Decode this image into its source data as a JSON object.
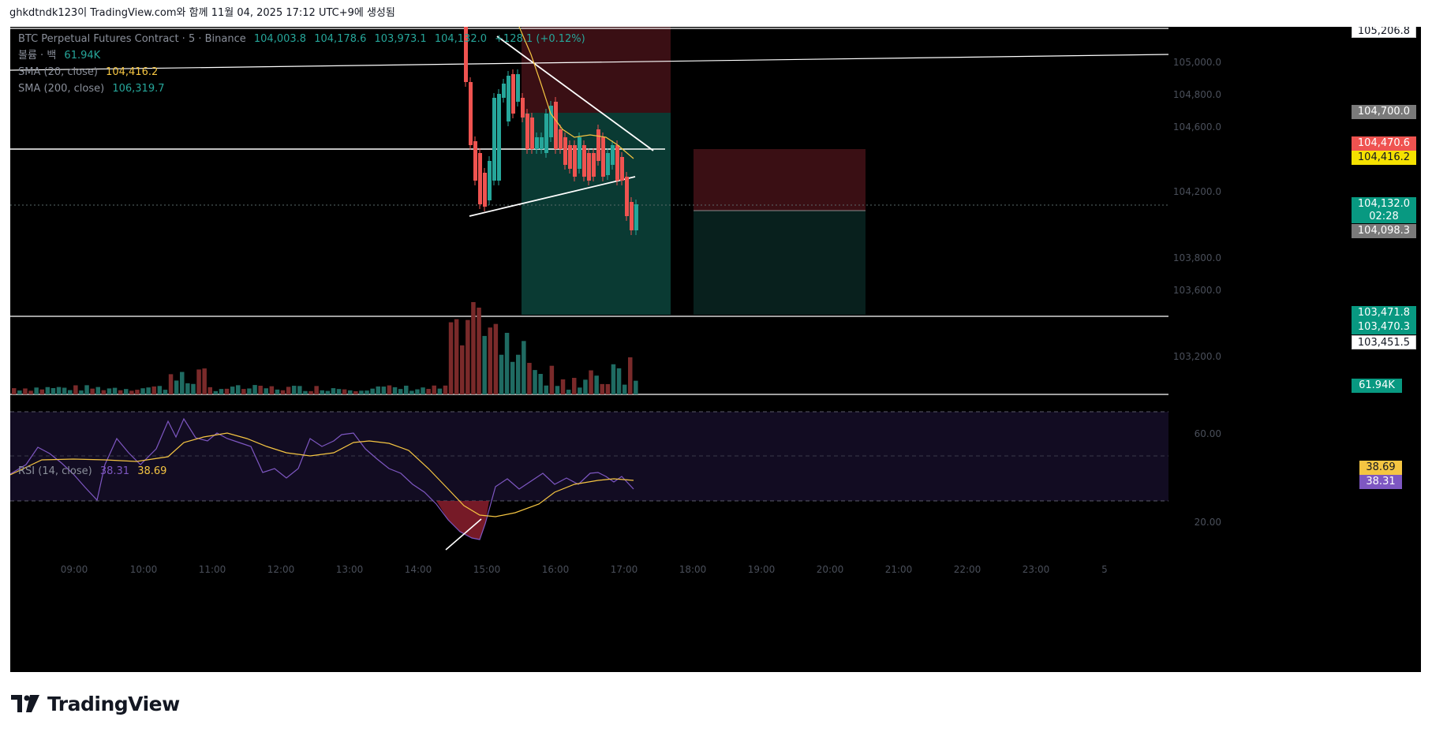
{
  "header": {
    "caption": "ghkdtndk123이 TradingView.com와 함께 11월 04, 2025 17:12 UTC+9에 생성됨"
  },
  "legend": {
    "symbol": "BTC Perpetual Futures Contract · 5 · Binance",
    "ohlc": [
      "104,003.8",
      "104,178.6",
      "103,973.1",
      "104,132.0"
    ],
    "change": "+128.1 (+0.12%)",
    "volume_label": "볼륨 · 백",
    "volume_value": "61.94K",
    "sma20_label": "SMA (20, close)",
    "sma20_value": "104,416.2",
    "sma200_label": "SMA (200, close)",
    "sma200_value": "106,319.7"
  },
  "rsi_legend": {
    "label": "RSI (14, close)",
    "rsi_value": "38.31",
    "ma_value": "38.69"
  },
  "price_axis": {
    "ticks": [
      "105,000.0",
      "104,800.0",
      "104,600.0",
      "104,200.0",
      "103,800.0",
      "103,600.0",
      "103,200.0"
    ],
    "labels": {
      "top_line": "105,206.8",
      "gray_level": "104,700.0",
      "red_level": "104,470.6",
      "sma20": "104,416.2",
      "last_price": "104,132.0",
      "countdown": "02:28",
      "gray_level2": "104,098.3",
      "green1": "103,471.8",
      "green2": "103,470.3",
      "white_level": "103,451.5",
      "volume": "61.94K"
    }
  },
  "rsi_axis": {
    "ticks": [
      "60.00",
      "20.00"
    ],
    "ma_label": "38.69",
    "rsi_label": "38.31"
  },
  "time_axis": {
    "ticks": [
      "09:00",
      "10:00",
      "11:00",
      "12:00",
      "13:00",
      "14:00",
      "15:00",
      "16:00",
      "17:00",
      "18:00",
      "19:00",
      "20:00",
      "21:00",
      "22:00",
      "23:00",
      "5"
    ]
  },
  "footer": {
    "brand": "TradingView"
  },
  "colors": {
    "up": "#26a69a",
    "down": "#ef5350",
    "sma20": "#f5c542",
    "rsi": "#7e57c2",
    "profit_zone": "#0a3a33",
    "loss_zone": "#3a0f14"
  }
}
